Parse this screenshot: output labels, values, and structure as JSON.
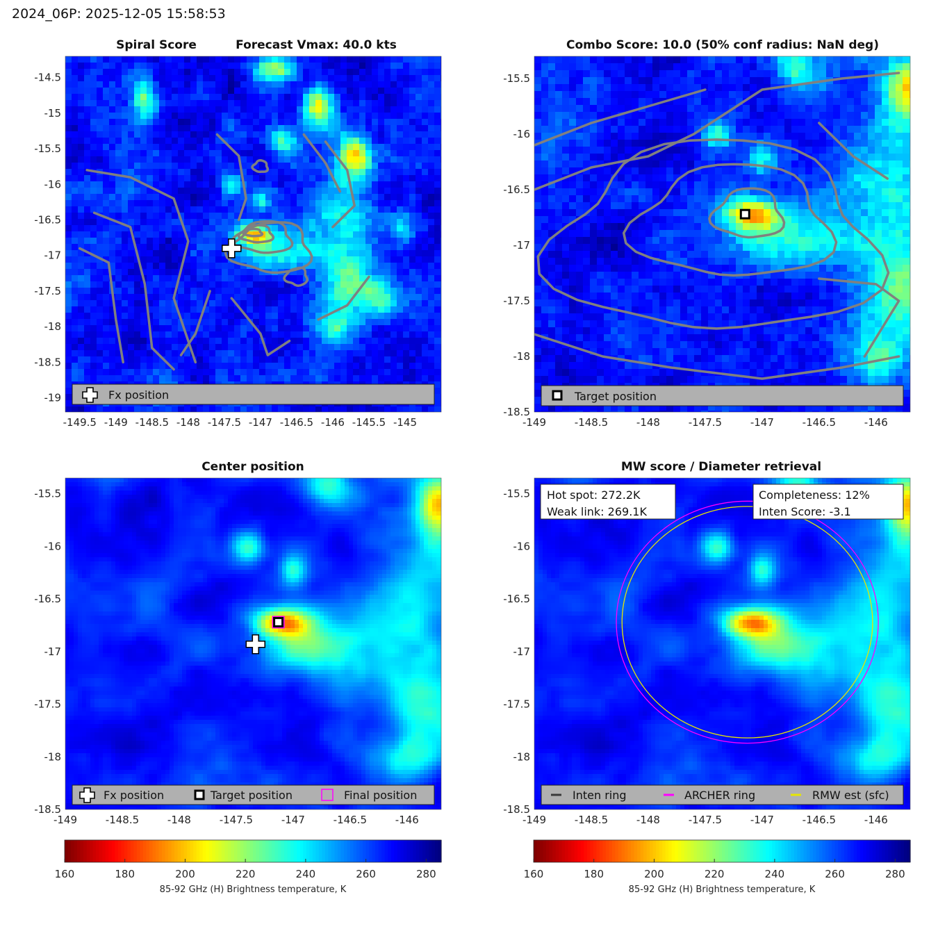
{
  "figure_title": "2024_06P: 2025-12-05 15:58:53",
  "colormap": {
    "name": "jet-reversed",
    "min": 160,
    "max": 285,
    "ticks": [
      160,
      180,
      200,
      220,
      240,
      260,
      280
    ],
    "label": "85-92 GHz (H) Brightness temperature, K"
  },
  "panels": [
    {
      "id": "spiral",
      "title_left": "Spiral Score",
      "title_right": "Forecast Vmax: 40.0 kts",
      "xlim": [
        -149.7,
        -144.5
      ],
      "ylim": [
        -19.2,
        -14.2
      ],
      "xticks": [
        -149.5,
        -149,
        -148.5,
        -148,
        -147.5,
        -147,
        -146.5,
        -146,
        -145.5,
        -145
      ],
      "yticks": [
        -14.5,
        -15,
        -15.5,
        -16,
        -16.5,
        -17,
        -17.5,
        -18,
        -18.5,
        -19
      ],
      "legend": [
        {
          "symbol": "plus",
          "label": "Fx position"
        }
      ]
    },
    {
      "id": "combo",
      "title": "Combo Score: 10.0  (50% conf radius: NaN deg)",
      "xlim": [
        -149,
        -145.7
      ],
      "ylim": [
        -18.5,
        -15.3
      ],
      "xticks": [
        -149,
        -148.5,
        -148,
        -147.5,
        -147,
        -146.5,
        -146
      ],
      "yticks": [
        -15.5,
        -16,
        -16.5,
        -17,
        -17.5,
        -18,
        -18.5
      ],
      "legend": [
        {
          "symbol": "square",
          "label": "Target position"
        }
      ]
    },
    {
      "id": "center",
      "title": "Center position",
      "xlim": [
        -149,
        -145.7
      ],
      "ylim": [
        -18.5,
        -15.35
      ],
      "xticks": [
        -149,
        -148.5,
        -148,
        -147.5,
        -147,
        -146.5,
        -146
      ],
      "yticks": [
        -15.5,
        -16,
        -16.5,
        -17,
        -17.5,
        -18,
        -18.5
      ],
      "legend": [
        {
          "symbol": "plus",
          "label": "Fx position"
        },
        {
          "symbol": "square",
          "label": "Target position"
        },
        {
          "symbol": "magenta-square",
          "label": "Final position"
        }
      ]
    },
    {
      "id": "mwscore",
      "title": "MW score / Diameter retrieval",
      "xlim": [
        -149,
        -145.7
      ],
      "ylim": [
        -18.5,
        -15.35
      ],
      "xticks": [
        -149,
        -148.5,
        -148,
        -147.5,
        -147,
        -146.5,
        -146
      ],
      "yticks": [
        -15.5,
        -16,
        -16.5,
        -17,
        -17.5,
        -18,
        -18.5
      ],
      "info_left": [
        "Hot spot: 272.2K",
        "Weak link: 269.1K"
      ],
      "info_right": [
        "Completeness: 12%",
        "Inten Score: -3.1"
      ],
      "legend": [
        {
          "symbol": "dark-line",
          "label": "Inten ring"
        },
        {
          "symbol": "magenta-line",
          "label": "ARCHER ring"
        },
        {
          "symbol": "yellow-line",
          "label": "RMW est (sfc)"
        }
      ]
    }
  ],
  "chart_data": [
    {
      "type": "heatmap",
      "panel": "Spiral Score",
      "title": "Spiral Score",
      "subtitle": "Forecast Vmax: 40.0 kts",
      "xlim": [
        -149.7,
        -144.5
      ],
      "ylim": [
        -19.2,
        -14.2
      ],
      "cold_spots": [
        {
          "lon": -147.1,
          "lat": -16.7,
          "tb": 205
        },
        {
          "lon": -146.2,
          "lat": -14.9,
          "tb": 195
        },
        {
          "lon": -145.7,
          "lat": -15.6,
          "tb": 200
        },
        {
          "lon": -146.8,
          "lat": -14.4,
          "tb": 210
        },
        {
          "lon": -148.6,
          "lat": -14.8,
          "tb": 205
        }
      ],
      "markers": [
        {
          "label": "Fx position",
          "lon": -147.4,
          "lat": -16.9
        }
      ]
    },
    {
      "type": "heatmap",
      "panel": "Combo Score",
      "title": "Combo Score: 10.0  (50% conf radius: NaN deg)",
      "xlim": [
        -149,
        -145.7
      ],
      "ylim": [
        -18.5,
        -15.3
      ],
      "markers": [
        {
          "label": "Target position",
          "lon": -147.15,
          "lat": -16.72
        }
      ]
    },
    {
      "type": "heatmap",
      "panel": "Center position",
      "title": "Center position",
      "xlim": [
        -149,
        -145.7
      ],
      "ylim": [
        -18.5,
        -15.35
      ],
      "markers": [
        {
          "label": "Fx position",
          "lon": -147.33,
          "lat": -16.93
        },
        {
          "label": "Target position",
          "lon": -147.13,
          "lat": -16.72
        },
        {
          "label": "Final position",
          "lon": -147.13,
          "lat": -16.72
        }
      ]
    },
    {
      "type": "heatmap",
      "panel": "MW score / Diameter retrieval",
      "title": "MW score / Diameter retrieval",
      "xlim": [
        -149,
        -145.7
      ],
      "ylim": [
        -18.5,
        -15.35
      ],
      "rings": [
        {
          "label": "ARCHER ring",
          "center": [
            -147.13,
            -16.72
          ],
          "radius_deg": 1.15,
          "color": "#ff00ff"
        },
        {
          "label": "RMW est (sfc)",
          "center": [
            -147.13,
            -16.72
          ],
          "radius_deg": 1.1,
          "color": "#e6e600"
        }
      ],
      "values": {
        "hot_spot_K": 272.2,
        "weak_link_K": 269.1,
        "completeness_pct": 12,
        "inten_score": -3.1
      }
    }
  ]
}
